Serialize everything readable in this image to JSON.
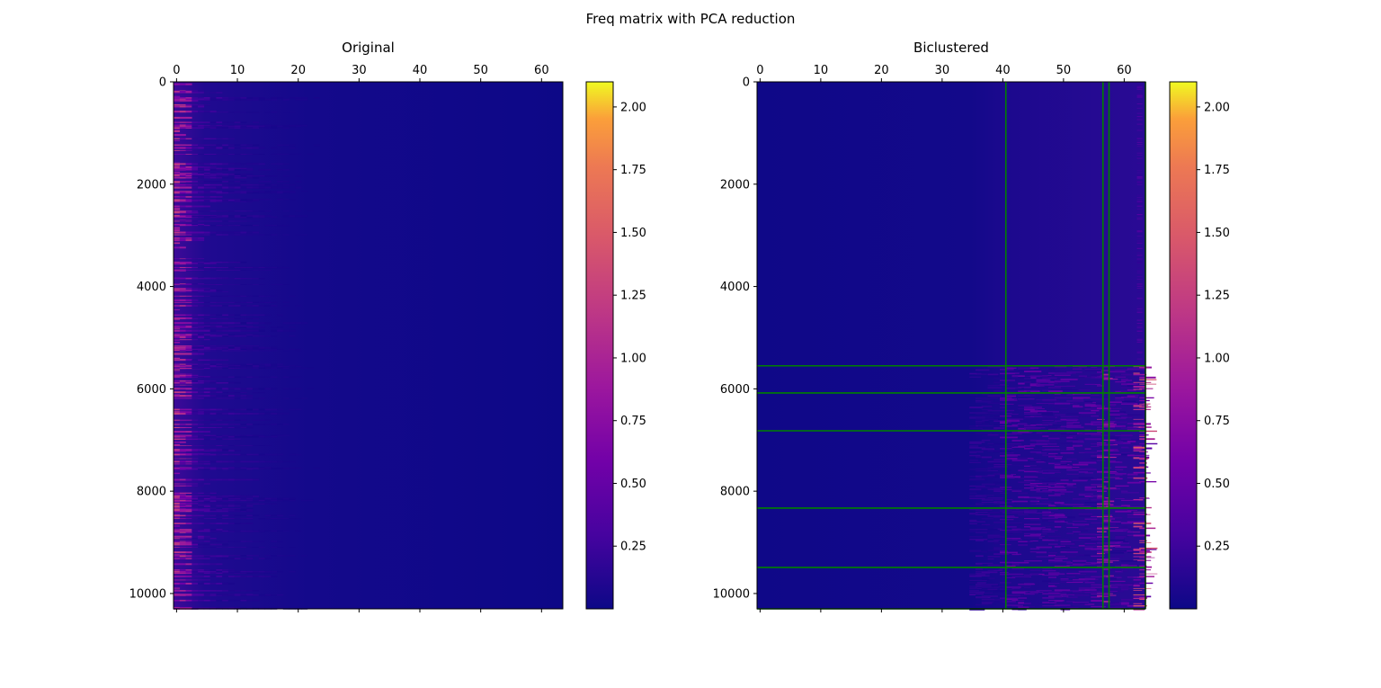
{
  "figure": {
    "title": "Freq matrix with PCA reduction"
  },
  "chart_data": [
    {
      "type": "heatmap",
      "title": "Original",
      "xlabel": "",
      "ylabel": "",
      "x_ticks": [
        0,
        10,
        20,
        30,
        40,
        50,
        60
      ],
      "y_ticks": [
        0,
        2000,
        4000,
        6000,
        8000,
        10000
      ],
      "xlim": [
        -0.5,
        63.5
      ],
      "ylim": [
        10300,
        0
      ],
      "n_cols": 64,
      "n_rows": 10300,
      "colormap": "plasma",
      "value_range": [
        0.0,
        2.1
      ],
      "colorbar_ticks": [
        0.25,
        0.5,
        0.75,
        1.0,
        1.25,
        1.5,
        1.75,
        2.0
      ],
      "colorbar_tick_labels": [
        "0.25",
        "0.50",
        "0.75",
        "1.00",
        "1.25",
        "1.50",
        "1.75",
        "2.00"
      ],
      "description_values": "values concentrated in first ~5 columns (up to ~1.3), fading to ~0 beyond column ~30"
    },
    {
      "type": "heatmap",
      "title": "Biclustered",
      "xlabel": "",
      "ylabel": "",
      "x_ticks": [
        0,
        10,
        20,
        30,
        40,
        50,
        60
      ],
      "y_ticks": [
        0,
        2000,
        4000,
        6000,
        8000,
        10000
      ],
      "xlim": [
        -0.5,
        63.5
      ],
      "ylim": [
        10300,
        0
      ],
      "n_cols": 64,
      "n_rows": 10300,
      "colormap": "plasma",
      "value_range": [
        0.0,
        2.1
      ],
      "colorbar_ticks": [
        0.25,
        0.5,
        0.75,
        1.0,
        1.25,
        1.5,
        1.75,
        2.0
      ],
      "colorbar_tick_labels": [
        "0.25",
        "0.50",
        "0.75",
        "1.00",
        "1.25",
        "1.50",
        "1.75",
        "2.00"
      ],
      "cluster_boundaries_cols": [
        40.5,
        56.5,
        57.5,
        63.5
      ],
      "cluster_boundaries_rows": [
        5550,
        6080,
        6820,
        8330,
        9490,
        10300
      ],
      "boundary_color": "#008000"
    }
  ]
}
